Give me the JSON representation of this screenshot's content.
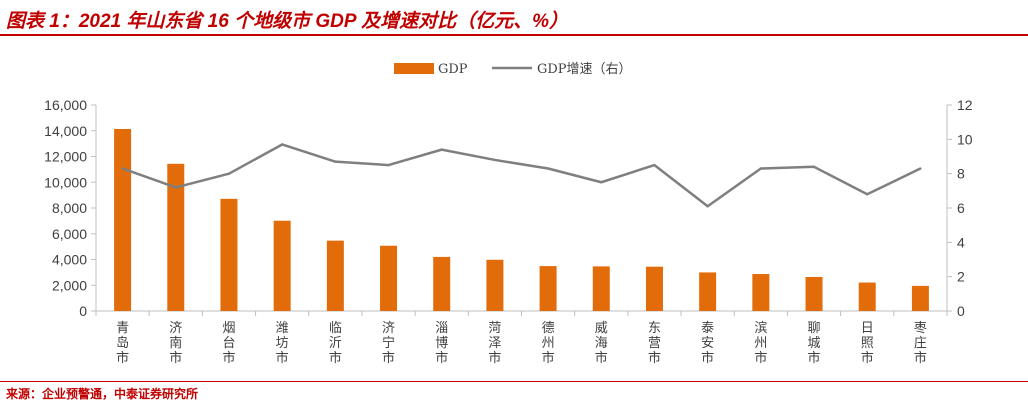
{
  "header": {
    "title": "图表 1：2021 年山东省 16 个地级市 GDP 及增速对比（亿元、%）"
  },
  "footer": {
    "source": "来源：企业预警通，中泰证券研究所"
  },
  "colors": {
    "accent": "#c00000",
    "bar": "#e36c0a",
    "line": "#7f7f7f",
    "axis": "#bfbfbf",
    "text": "#404040"
  },
  "chart_data": {
    "type": "bar",
    "title": "2021 年山东省 16 个地级市 GDP 及增速对比（亿元、%）",
    "categories": [
      "青岛市",
      "济南市",
      "烟台市",
      "潍坊市",
      "临沂市",
      "济宁市",
      "淄博市",
      "菏泽市",
      "德州市",
      "威海市",
      "东营市",
      "泰安市",
      "滨州市",
      "聊城市",
      "日照市",
      "枣庄市"
    ],
    "series": [
      {
        "name": "GDP",
        "type": "bar",
        "axis": "left",
        "values": [
          14136,
          11432,
          8712,
          7011,
          5465,
          5070,
          4201,
          3977,
          3488,
          3464,
          3441,
          2996,
          2872,
          2643,
          2211,
          1951
        ]
      },
      {
        "name": "GDP增速（右）",
        "type": "line",
        "axis": "right",
        "values": [
          8.3,
          7.2,
          8.0,
          9.7,
          8.7,
          8.5,
          9.4,
          8.8,
          8.3,
          7.5,
          8.5,
          6.1,
          8.3,
          8.4,
          6.8,
          8.3
        ]
      }
    ],
    "y_left": {
      "min": 0,
      "max": 16000,
      "ticks": [
        0,
        2000,
        4000,
        6000,
        8000,
        10000,
        12000,
        14000,
        16000
      ],
      "tick_labels": [
        "0",
        "2,000",
        "4,000",
        "6,000",
        "8,000",
        "10,000",
        "12,000",
        "14,000",
        "16,000"
      ]
    },
    "y_right": {
      "min": 0,
      "max": 12,
      "ticks": [
        0,
        2,
        4,
        6,
        8,
        10,
        12
      ],
      "tick_labels": [
        "0",
        "2",
        "4",
        "6",
        "8",
        "10",
        "12"
      ]
    },
    "legend": {
      "position": "top",
      "entries": [
        "GDP",
        "GDP增速（右）"
      ]
    },
    "grid": false,
    "xlabel": "",
    "ylabel": ""
  }
}
